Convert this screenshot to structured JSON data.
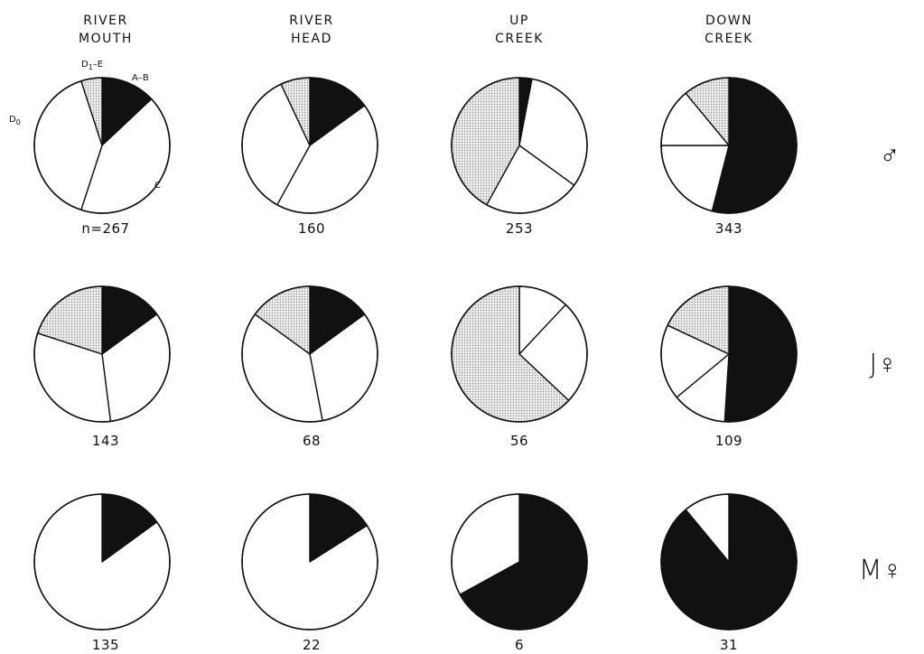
{
  "chart_data": {
    "type": "pie",
    "columns": [
      {
        "line1": "RIVER",
        "line2": "MOUTH"
      },
      {
        "line1": "RIVER",
        "line2": "HEAD"
      },
      {
        "line1": "UP",
        "line2": "CREEK"
      },
      {
        "line1": "DOWN",
        "line2": "CREEK"
      }
    ],
    "rows": [
      {
        "label": "♂",
        "counts": [
          "n=267",
          "160",
          "253",
          "343"
        ]
      },
      {
        "label": "J♀",
        "counts": [
          "143",
          "68",
          "56",
          "109"
        ]
      },
      {
        "label": "M♀",
        "counts": [
          "135",
          "22",
          "6",
          "31"
        ]
      }
    ],
    "slice_labels": {
      "ab": "A–B",
      "c": "C",
      "d0": "D",
      "d0_sub": "0",
      "d1e": "D",
      "d1e_sub": "1",
      "d1e_tail": "–E"
    },
    "colors": {
      "A-B": "#111111",
      "C": "#ffffff",
      "D0": "#ffffff",
      "D1-E": "#d4d4d4",
      "outline": "#111111"
    },
    "pies": [
      [
        [
          {
            "stage": "A-B",
            "pct": 13
          },
          {
            "stage": "C",
            "pct": 42
          },
          {
            "stage": "D0",
            "pct": 40
          },
          {
            "stage": "D1-E",
            "pct": 5
          }
        ],
        [
          {
            "stage": "A-B",
            "pct": 15
          },
          {
            "stage": "C",
            "pct": 43
          },
          {
            "stage": "D0",
            "pct": 35
          },
          {
            "stage": "D1-E",
            "pct": 7
          }
        ],
        [
          {
            "stage": "A-B",
            "pct": 3
          },
          {
            "stage": "C",
            "pct": 32
          },
          {
            "stage": "D0",
            "pct": 23
          },
          {
            "stage": "D1-E",
            "pct": 42
          }
        ],
        [
          {
            "stage": "A-B",
            "pct": 54
          },
          {
            "stage": "C",
            "pct": 21
          },
          {
            "stage": "D0",
            "pct": 14
          },
          {
            "stage": "D1-E",
            "pct": 11
          }
        ]
      ],
      [
        [
          {
            "stage": "A-B",
            "pct": 15
          },
          {
            "stage": "C",
            "pct": 33
          },
          {
            "stage": "D0",
            "pct": 32
          },
          {
            "stage": "D1-E",
            "pct": 20
          }
        ],
        [
          {
            "stage": "A-B",
            "pct": 15
          },
          {
            "stage": "C",
            "pct": 32
          },
          {
            "stage": "D0",
            "pct": 38
          },
          {
            "stage": "D1-E",
            "pct": 15
          }
        ],
        [
          {
            "stage": "A-B",
            "pct": 0
          },
          {
            "stage": "C",
            "pct": 12
          },
          {
            "stage": "D0",
            "pct": 25
          },
          {
            "stage": "D1-E",
            "pct": 63
          }
        ],
        [
          {
            "stage": "A-B",
            "pct": 51
          },
          {
            "stage": "C",
            "pct": 13
          },
          {
            "stage": "D0",
            "pct": 18
          },
          {
            "stage": "D1-E",
            "pct": 18
          }
        ]
      ],
      [
        [
          {
            "stage": "A-B",
            "pct": 15
          },
          {
            "stage": "C",
            "pct": 85
          },
          {
            "stage": "D0",
            "pct": 0
          },
          {
            "stage": "D1-E",
            "pct": 0
          }
        ],
        [
          {
            "stage": "A-B",
            "pct": 16
          },
          {
            "stage": "C",
            "pct": 84
          },
          {
            "stage": "D0",
            "pct": 0
          },
          {
            "stage": "D1-E",
            "pct": 0
          }
        ],
        [
          {
            "stage": "A-B",
            "pct": 67
          },
          {
            "stage": "C",
            "pct": 33
          },
          {
            "stage": "D0",
            "pct": 0
          },
          {
            "stage": "D1-E",
            "pct": 0
          }
        ],
        [
          {
            "stage": "A-B",
            "pct": 89
          },
          {
            "stage": "C",
            "pct": 11
          },
          {
            "stage": "D0",
            "pct": 0
          },
          {
            "stage": "D1-E",
            "pct": 0
          }
        ]
      ]
    ]
  }
}
